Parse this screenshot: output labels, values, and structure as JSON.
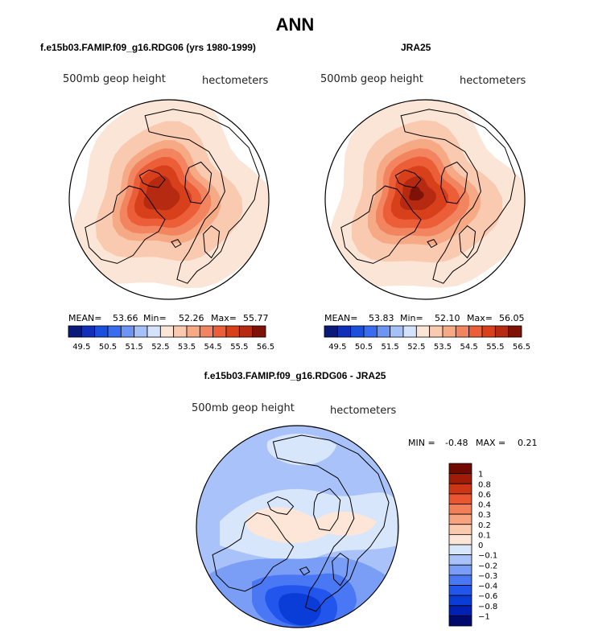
{
  "figure_title": "ANN",
  "chart_data": [
    {
      "type": "heatmap",
      "projection": "north polar stereographic",
      "title": "f.e15b03.FAMIP.f09_g16.RDG06 (yrs 1980-1999)",
      "field": "500mb geop height",
      "units": "hectometers",
      "stats": {
        "mean_label": "MEAN=",
        "mean": "53.66",
        "min_label": "Min=",
        "min": "52.26",
        "max_label": "Max=",
        "max": "55.77"
      },
      "colorbar": {
        "orientation": "horizontal",
        "levels": [
          "49.5",
          "50",
          "50.5",
          "51",
          "51.5",
          "52",
          "52.5",
          "53",
          "53.5",
          "54",
          "54.5",
          "55",
          "55.5",
          "56",
          "56.5"
        ],
        "tick_labels": [
          "49.5",
          "50.5",
          "51.5",
          "52.5",
          "53.5",
          "54.5",
          "55.5",
          "56.5"
        ]
      },
      "bands": [
        {
          "r": 1.0,
          "level": 52.5
        },
        {
          "r": 0.72,
          "level": 53.0
        },
        {
          "r": 0.54,
          "level": 53.5
        },
        {
          "r": 0.46,
          "level": 54.0
        },
        {
          "r": 0.38,
          "level": 54.5
        },
        {
          "r": 0.3,
          "level": 55.0
        },
        {
          "r": 0.2,
          "level": 55.5
        }
      ]
    },
    {
      "type": "heatmap",
      "projection": "north polar stereographic",
      "title": "JRA25",
      "field": "500mb geop height",
      "units": "hectometers",
      "stats": {
        "mean_label": "MEAN=",
        "mean": "53.83",
        "min_label": "Min=",
        "min": "52.10",
        "max_label": "Max=",
        "max": "56.05"
      },
      "colorbar": {
        "orientation": "horizontal",
        "levels": [
          "49.5",
          "50",
          "50.5",
          "51",
          "51.5",
          "52",
          "52.5",
          "53",
          "53.5",
          "54",
          "54.5",
          "55",
          "55.5",
          "56",
          "56.5"
        ],
        "tick_labels": [
          "49.5",
          "50.5",
          "51.5",
          "52.5",
          "53.5",
          "54.5",
          "55.5",
          "56.5"
        ]
      },
      "bands": [
        {
          "r": 1.0,
          "level": 52.5
        },
        {
          "r": 0.74,
          "level": 53.0
        },
        {
          "r": 0.56,
          "level": 53.5
        },
        {
          "r": 0.47,
          "level": 54.0
        },
        {
          "r": 0.39,
          "level": 54.5
        },
        {
          "r": 0.3,
          "level": 55.0
        },
        {
          "r": 0.2,
          "level": 55.5
        },
        {
          "r": 0.1,
          "level": 56.0
        }
      ]
    },
    {
      "type": "heatmap",
      "projection": "north polar stereographic",
      "title": "f.e15b03.FAMIP.f09_g16.RDG06 - JRA25",
      "field": "500mb geop height",
      "units": "hectometers",
      "stats": {
        "min_label": "MIN =",
        "min": "-0.48",
        "max_label": "MAX =",
        "max": "0.21"
      },
      "colorbar": {
        "orientation": "vertical",
        "levels": [
          "-1",
          "-0.8",
          "-0.6",
          "-0.4",
          "-0.3",
          "-0.2",
          "-0.1",
          "0",
          "0.1",
          "0.2",
          "0.3",
          "0.4",
          "0.6",
          "0.8",
          "1"
        ],
        "tick_labels": [
          "−1",
          "−0.8",
          "−0.6",
          "−0.4",
          "−0.3",
          "−0.2",
          "−0.1",
          "0",
          "0.1",
          "0.2",
          "0.3",
          "0.4",
          "0.6",
          "0.8",
          "1"
        ]
      },
      "background_level": -0.1
    }
  ],
  "colors": {
    "abs_scale": [
      "#0a1a78",
      "#1030b8",
      "#1c4fdc",
      "#3a6cf0",
      "#6f95f4",
      "#a6c0f8",
      "#d4e2fb",
      "#fbe5d6",
      "#f9c9b0",
      "#f6a985",
      "#f28460",
      "#ec5e38",
      "#d8401c",
      "#b52a10",
      "#7e1206"
    ],
    "diff_scale": [
      "#000a6e",
      "#0020b4",
      "#0a3cd8",
      "#2255ec",
      "#4a78f4",
      "#7a9ef6",
      "#a9c2f9",
      "#d8e6fb",
      "#fde6d8",
      "#fac9ae",
      "#f7a37f",
      "#f27f58",
      "#e95630",
      "#cc3614",
      "#a01c06",
      "#700a00"
    ],
    "ocean_line": "#000000"
  }
}
